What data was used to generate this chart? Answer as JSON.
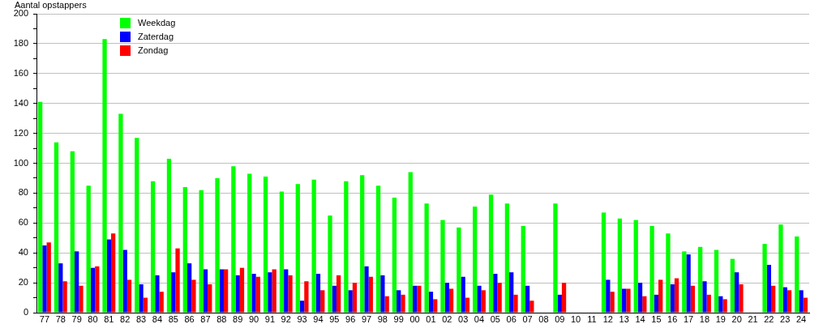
{
  "chart_data": {
    "type": "bar",
    "ylabel": "Aantal opstappers",
    "categories": [
      "77",
      "78",
      "79",
      "80",
      "81",
      "82",
      "83",
      "84",
      "85",
      "86",
      "87",
      "88",
      "89",
      "90",
      "91",
      "92",
      "93",
      "94",
      "95",
      "96",
      "97",
      "98",
      "99",
      "00",
      "01",
      "02",
      "03",
      "04",
      "05",
      "06",
      "07",
      "08",
      "09",
      "10",
      "11",
      "12",
      "13",
      "14",
      "15",
      "16",
      "17",
      "18",
      "19",
      "20",
      "21",
      "22",
      "23",
      "24"
    ],
    "series": [
      {
        "name": "Weekdag",
        "color": "#00ff00",
        "values": [
          141,
          114,
          108,
          85,
          183,
          133,
          117,
          88,
          103,
          84,
          82,
          90,
          98,
          93,
          91,
          81,
          86,
          89,
          65,
          88,
          92,
          85,
          77,
          94,
          73,
          62,
          57,
          71,
          79,
          73,
          58,
          null,
          73,
          null,
          null,
          67,
          63,
          62,
          58,
          53,
          41,
          44,
          42,
          36,
          null,
          46,
          59,
          51
        ]
      },
      {
        "name": "Zaterdag",
        "color": "#0000ff",
        "values": [
          45,
          33,
          41,
          30,
          49,
          42,
          19,
          25,
          27,
          33,
          29,
          29,
          25,
          26,
          27,
          29,
          8,
          26,
          18,
          15,
          31,
          25,
          15,
          18,
          14,
          20,
          24,
          18,
          26,
          27,
          18,
          null,
          12,
          null,
          null,
          22,
          16,
          20,
          12,
          19,
          39,
          21,
          11,
          27,
          null,
          32,
          17,
          15
        ]
      },
      {
        "name": "Zondag",
        "color": "#ff0000",
        "values": [
          47,
          21,
          18,
          31,
          53,
          22,
          10,
          14,
          43,
          22,
          19,
          29,
          30,
          24,
          29,
          25,
          21,
          15,
          25,
          20,
          24,
          11,
          12,
          18,
          9,
          16,
          10,
          15,
          20,
          12,
          8,
          null,
          20,
          null,
          null,
          14,
          16,
          11,
          22,
          23,
          18,
          12,
          9,
          19,
          null,
          18,
          15,
          10
        ]
      }
    ],
    "ylim": [
      0,
      200
    ],
    "yticks": [
      0,
      {
        "value": 10,
        "label": null
      },
      20,
      {
        "value": 30,
        "label": null
      },
      40,
      {
        "value": 50,
        "label": null
      },
      60,
      {
        "value": 70,
        "label": null
      },
      80,
      {
        "value": 90,
        "label": null
      },
      100,
      {
        "value": 110,
        "label": null
      },
      120,
      {
        "value": 130,
        "label": null
      },
      140,
      {
        "value": 150,
        "label": null
      },
      160,
      {
        "value": 170,
        "label": null
      },
      180,
      {
        "value": 190,
        "label": null
      },
      200
    ],
    "grid": "y",
    "legend": "top left"
  }
}
